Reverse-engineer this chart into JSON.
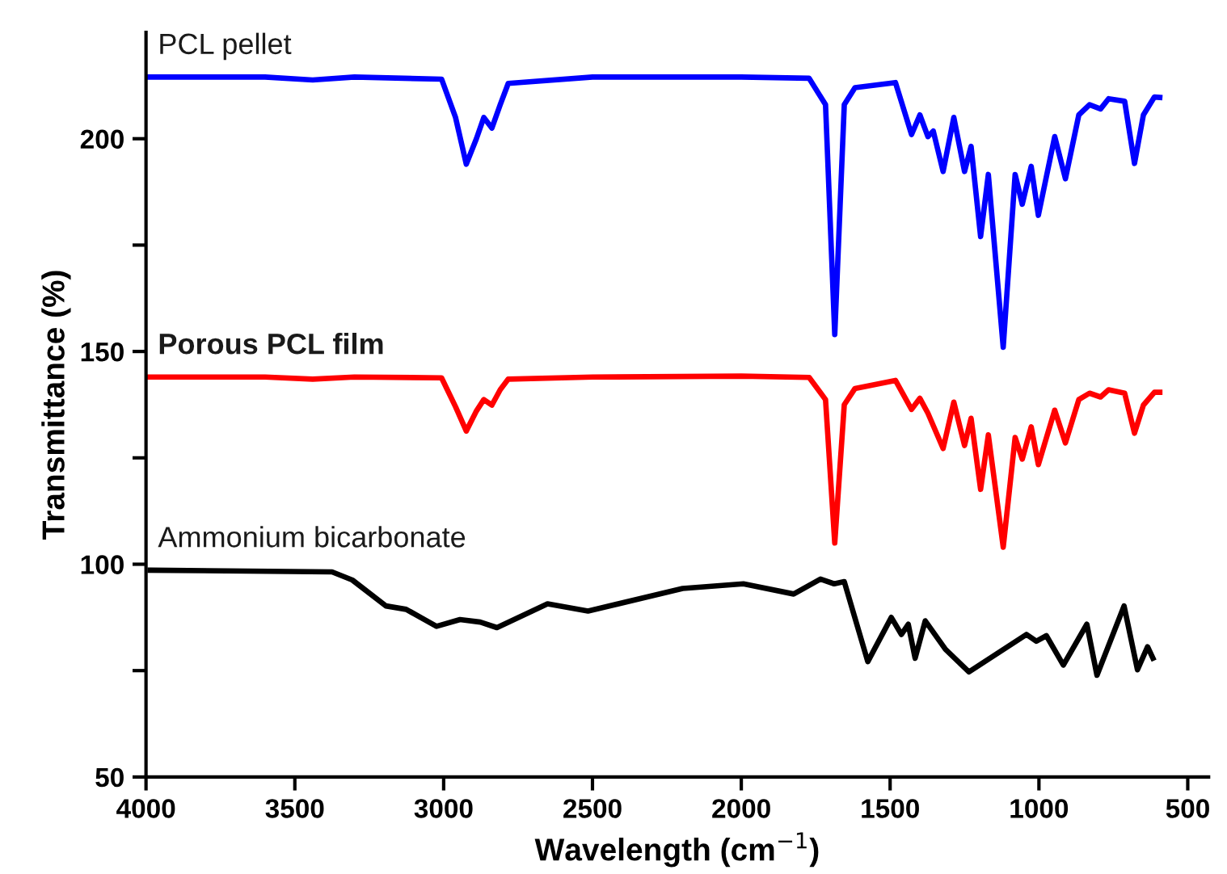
{
  "chart_data": {
    "type": "line",
    "xlabel": "Wavelength (cm$^{−1}$)",
    "ylabel": "Transmittance (%)",
    "xlim": [
      4000,
      430
    ],
    "xticks": [
      4000,
      3500,
      3000,
      2500,
      2000,
      1500,
      1000,
      500
    ],
    "ylim": [
      50,
      225
    ],
    "yticks": [
      50,
      {
        "value": 75,
        "label": null
      },
      100,
      {
        "value": 125,
        "label": null
      },
      150,
      {
        "value": 175,
        "label": null
      },
      200
    ],
    "grid": false,
    "legend": false,
    "marker": "none",
    "line_style": "solid",
    "series": [
      {
        "name": "PCL pellet",
        "color": "#0000ff",
        "x": [
          4000,
          3600,
          3440,
          3300,
          3007,
          2960,
          2924,
          2890,
          2865,
          2838,
          2810,
          2783,
          2500,
          2000,
          1772,
          1717,
          1686,
          1654,
          1618,
          1482,
          1428,
          1400,
          1373,
          1355,
          1322,
          1286,
          1250,
          1228,
          1196,
          1170,
          1120,
          1080,
          1056,
          1026,
          1002,
          947,
          911,
          866,
          830,
          793,
          766,
          712,
          679,
          649,
          612,
          594
        ],
        "values": [
          214.5,
          214.5,
          213.8,
          214.5,
          214,
          205,
          194,
          200,
          205,
          202.5,
          208,
          213,
          214.5,
          214.5,
          214.2,
          208,
          154,
          208,
          212,
          213.2,
          201,
          205.6,
          200.5,
          201.8,
          192.3,
          205,
          192.3,
          198.2,
          177,
          191.6,
          151,
          191.6,
          184.6,
          193.5,
          182,
          200.5,
          190.6,
          205.6,
          208,
          207,
          209.4,
          208.8,
          194.2,
          205.6,
          209.8,
          209.7
        ]
      },
      {
        "name": "Porous PCL film",
        "color": "#ff0000",
        "x": [
          4000,
          3600,
          3440,
          3300,
          3007,
          2960,
          2924,
          2890,
          2865,
          2838,
          2810,
          2783,
          2500,
          2000,
          1772,
          1717,
          1686,
          1654,
          1618,
          1482,
          1428,
          1400,
          1373,
          1322,
          1286,
          1250,
          1228,
          1196,
          1170,
          1120,
          1080,
          1056,
          1026,
          1002,
          947,
          911,
          866,
          830,
          793,
          766,
          712,
          679,
          649,
          612,
          594
        ],
        "values": [
          144,
          144,
          143.5,
          144,
          143.8,
          137,
          131.3,
          136,
          138.7,
          137.4,
          141,
          143.5,
          144,
          144.2,
          143.9,
          138.7,
          105,
          137.5,
          141.3,
          143.2,
          136.4,
          139,
          135.5,
          127.2,
          138.1,
          127.9,
          134.3,
          117.6,
          130.4,
          104,
          129.8,
          124.7,
          132.3,
          123.4,
          136.2,
          128.5,
          138.7,
          140.2,
          139.3,
          141,
          140.2,
          130.8,
          137.4,
          140.4,
          140.4
        ]
      },
      {
        "name": "Ammonium bicarbonate",
        "color": "#000000",
        "x": [
          3986,
          3375,
          3307,
          3194,
          3126,
          3024,
          2945,
          2877,
          2821,
          2651,
          2515,
          2197,
          1993,
          1824,
          1734,
          1688,
          1654,
          1575,
          1496,
          1462,
          1439,
          1416,
          1382,
          1314,
          1235,
          1042,
          1009,
          975,
          918,
          839,
          805,
          714,
          669,
          635,
          617
        ],
        "values": [
          98.6,
          98.2,
          96.3,
          90.2,
          89.4,
          85.4,
          87,
          86.4,
          85.1,
          90.7,
          89,
          94.3,
          95.4,
          93,
          96.5,
          95.4,
          95.9,
          77.1,
          87.5,
          83.5,
          85.9,
          77.9,
          86.7,
          80,
          74.7,
          83.5,
          81.9,
          83.2,
          76.3,
          85.9,
          73.9,
          90.2,
          75.2,
          80.6,
          77.9
        ]
      }
    ]
  }
}
